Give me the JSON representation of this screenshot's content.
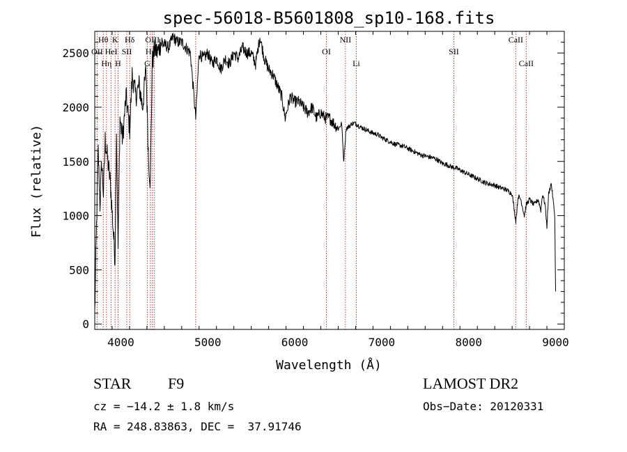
{
  "chart_data": {
    "type": "line",
    "title": "spec-56018-B5601808_sp10-168.fits",
    "xlabel": "Wavelength (Å)",
    "ylabel": "Flux (relative)",
    "xlim": [
      3700,
      9100
    ],
    "ylim": [
      -50,
      2700
    ],
    "grid": false,
    "x_ticks": [
      4000,
      5000,
      6000,
      7000,
      8000,
      9000
    ],
    "x_tick_labels": [
      "4000",
      "5000",
      "6000",
      "7000",
      "8000",
      "9000"
    ],
    "y_ticks": [
      0,
      500,
      1000,
      1500,
      2000,
      2500
    ],
    "y_tick_labels": [
      "0",
      "500",
      "1000",
      "1500",
      "2000",
      "2500"
    ],
    "series": [
      {
        "name": "spectrum",
        "x": [
          3700,
          3720,
          3740,
          3760,
          3780,
          3800,
          3820,
          3850,
          3880,
          3910,
          3933,
          3950,
          3968,
          3990,
          4020,
          4060,
          4102,
          4130,
          4170,
          4210,
          4250,
          4290,
          4320,
          4340,
          4360,
          4390,
          4420,
          4460,
          4500,
          4550,
          4600,
          4650,
          4700,
          4750,
          4800,
          4861,
          4900,
          4950,
          5000,
          5050,
          5100,
          5150,
          5200,
          5250,
          5300,
          5350,
          5400,
          5450,
          5500,
          5550,
          5600,
          5650,
          5700,
          5750,
          5800,
          5850,
          5890,
          5950,
          6000,
          6050,
          6100,
          6150,
          6200,
          6250,
          6300,
          6350,
          6400,
          6450,
          6500,
          6540,
          6563,
          6590,
          6620,
          6660,
          6700,
          6750,
          6800,
          6850,
          6900,
          6950,
          7000,
          7050,
          7100,
          7150,
          7200,
          7250,
          7300,
          7350,
          7400,
          7450,
          7500,
          7550,
          7600,
          7650,
          7700,
          7750,
          7800,
          7850,
          7900,
          7950,
          8000,
          8050,
          8100,
          8150,
          8200,
          8250,
          8300,
          8350,
          8400,
          8450,
          8500,
          8542,
          8570,
          8600,
          8640,
          8662,
          8700,
          8750,
          8800,
          8830,
          8850,
          8880,
          8900,
          8920,
          8950,
          8970,
          8990,
          9000
        ],
        "y": [
          100,
          900,
          1600,
          1100,
          1500,
          1200,
          1700,
          1500,
          1300,
          900,
          600,
          1800,
          700,
          1900,
          1700,
          2100,
          1800,
          2300,
          2100,
          2200,
          2000,
          2350,
          1500,
          1300,
          2400,
          2550,
          2500,
          2600,
          2580,
          2550,
          2650,
          2600,
          2600,
          2550,
          2500,
          1900,
          2500,
          2450,
          2500,
          2400,
          2450,
          2350,
          2450,
          2400,
          2500,
          2450,
          2550,
          2500,
          2500,
          2400,
          2650,
          2450,
          2350,
          2300,
          2200,
          2100,
          1900,
          2100,
          2050,
          2050,
          2000,
          1950,
          2000,
          1900,
          1950,
          1900,
          1900,
          1850,
          1800,
          1850,
          1500,
          1800,
          1820,
          1850,
          1850,
          1820,
          1800,
          1780,
          1760,
          1750,
          1720,
          1700,
          1680,
          1660,
          1650,
          1640,
          1620,
          1600,
          1580,
          1560,
          1550,
          1540,
          1530,
          1510,
          1480,
          1470,
          1450,
          1440,
          1420,
          1400,
          1380,
          1360,
          1340,
          1320,
          1300,
          1290,
          1280,
          1260,
          1250,
          1230,
          1200,
          950,
          1180,
          1150,
          1000,
          1100,
          1150,
          1100,
          1150,
          1050,
          1200,
          1100,
          900,
          1200,
          1300,
          1150,
          1000,
          300
        ]
      }
    ],
    "line_marks": [
      {
        "label": "Hθ",
        "x": 3798,
        "row": 1
      },
      {
        "label": "OII",
        "x": 3727,
        "row": 2
      },
      {
        "label": "Hη",
        "x": 3835,
        "row": 3
      },
      {
        "label": "K",
        "x": 3934,
        "row": 1
      },
      {
        "label": "HeI",
        "x": 3889,
        "row": 2
      },
      {
        "label": "H",
        "x": 3968,
        "row": 3
      },
      {
        "label": "Hδ",
        "x": 4102,
        "row": 1
      },
      {
        "label": "SII",
        "x": 4069,
        "row": 2
      },
      {
        "label": "OIII",
        "x": 4363,
        "row": 1
      },
      {
        "label": "Hγ",
        "x": 4340,
        "row": 2
      },
      {
        "label": "G",
        "x": 4305,
        "row": 3
      },
      {
        "label": "NII",
        "x": 6583,
        "row": 1
      },
      {
        "label": "OI",
        "x": 6364,
        "row": 2
      },
      {
        "label": "Li",
        "x": 6708,
        "row": 3
      },
      {
        "label": "SII",
        "x": 7830,
        "row": 2
      },
      {
        "label": "CaII",
        "x": 8542,
        "row": 1
      },
      {
        "label": "CaII",
        "x": 8662,
        "row": 3
      }
    ],
    "extra_lines_x": [
      4861,
      4383
    ]
  },
  "info": {
    "object_class": "STAR",
    "subclass": "F9",
    "survey": "LAMOST DR2",
    "cz": "cz = −14.2 ± 1.8 km/s",
    "obs_date": "Obs−Date: 20120331",
    "coords": "RA = 248.83863, DEC =  37.91746"
  },
  "colors": {
    "line": "#000000",
    "marker": "#b02020"
  }
}
